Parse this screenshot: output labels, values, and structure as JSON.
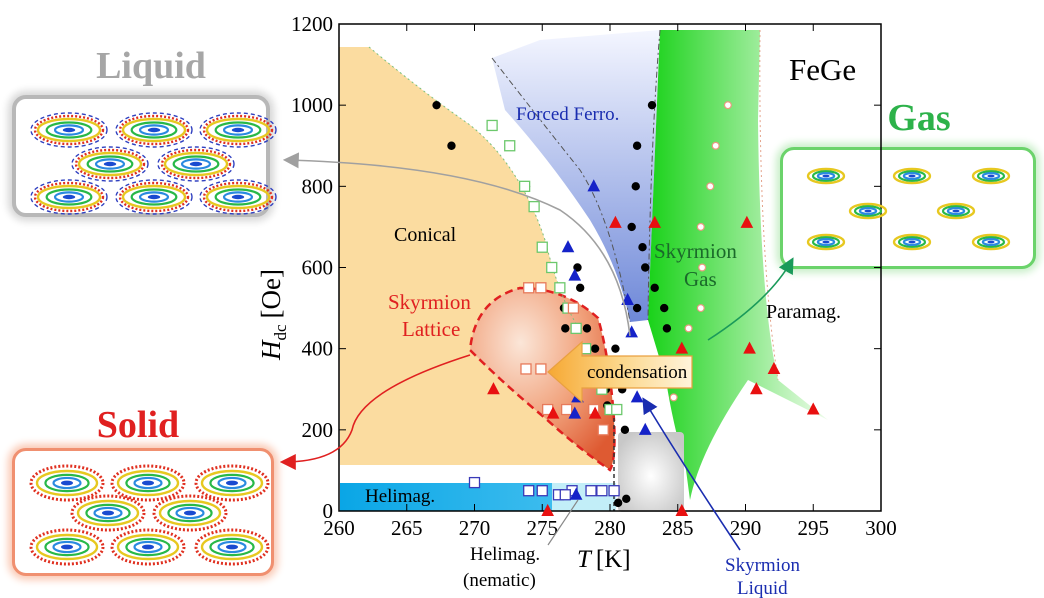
{
  "chart_data": {
    "type": "scatter",
    "title": "FeGe",
    "xlabel_symbol": "T",
    "xlabel_unit": "[K]",
    "ylabel_symbol": "H",
    "ylabel_sub": "dc",
    "ylabel_unit": "[Oe]",
    "xlim": [
      260,
      300
    ],
    "ylim": [
      0,
      1200
    ],
    "xticks": [
      260,
      265,
      270,
      275,
      280,
      285,
      290,
      295,
      300
    ],
    "yticks": [
      0,
      200,
      400,
      600,
      800,
      1000,
      1200
    ],
    "grid": false,
    "series": [
      {
        "marker": "black-circle",
        "points": [
          [
            267.2,
            1000
          ],
          [
            268.3,
            900
          ],
          [
            273.8,
            800
          ],
          [
            275,
            550
          ],
          [
            276.6,
            500
          ],
          [
            276.7,
            450
          ],
          [
            277.6,
            600
          ],
          [
            277.8,
            550
          ],
          [
            278.3,
            450
          ],
          [
            278.9,
            400
          ],
          [
            279.4,
            350
          ],
          [
            279.7,
            300
          ],
          [
            279.8,
            260
          ],
          [
            280.4,
            400
          ],
          [
            280.7,
            340
          ],
          [
            280.9,
            300
          ],
          [
            281.1,
            200
          ],
          [
            281.6,
            700
          ],
          [
            281.9,
            800
          ],
          [
            282,
            900
          ],
          [
            282,
            500
          ],
          [
            282.4,
            650
          ],
          [
            282.6,
            600
          ],
          [
            283.1,
            1000
          ],
          [
            283.3,
            550
          ],
          [
            284,
            500
          ],
          [
            284.2,
            450
          ],
          [
            279.5,
            200
          ],
          [
            280.2,
            50
          ],
          [
            280.6,
            20
          ],
          [
            281.2,
            30
          ]
        ]
      },
      {
        "marker": "green-open-square",
        "points": [
          [
            271.3,
            950
          ],
          [
            272.6,
            900
          ],
          [
            273.7,
            800
          ],
          [
            274.4,
            750
          ],
          [
            275,
            650
          ],
          [
            275.7,
            600
          ],
          [
            276.3,
            550
          ],
          [
            276.9,
            500
          ],
          [
            277.5,
            450
          ],
          [
            278.2,
            400
          ],
          [
            278.8,
            350
          ],
          [
            279.4,
            300
          ],
          [
            280,
            250
          ],
          [
            280.5,
            250
          ]
        ]
      },
      {
        "marker": "salmon-open-square",
        "points": [
          [
            274,
            550
          ],
          [
            274.9,
            550
          ],
          [
            277.3,
            500
          ],
          [
            273.8,
            350
          ],
          [
            274.9,
            350
          ],
          [
            276.8,
            250
          ],
          [
            278.8,
            250
          ],
          [
            279.5,
            200
          ],
          [
            275.4,
            250
          ]
        ]
      },
      {
        "marker": "blue-open-square",
        "points": [
          [
            270,
            70
          ],
          [
            274,
            50
          ],
          [
            275,
            50
          ],
          [
            277.2,
            50
          ],
          [
            278.6,
            50
          ],
          [
            279.4,
            50
          ],
          [
            280.3,
            50
          ],
          [
            276.2,
            40
          ],
          [
            276.7,
            40
          ]
        ]
      },
      {
        "marker": "red-triangle",
        "points": [
          [
            280.4,
            710
          ],
          [
            283.3,
            710
          ],
          [
            290.1,
            710
          ],
          [
            290.3,
            400
          ],
          [
            285.3,
            400
          ],
          [
            292.1,
            350
          ],
          [
            295,
            250
          ],
          [
            290.8,
            300
          ],
          [
            271.4,
            300
          ],
          [
            275.8,
            240
          ],
          [
            278.9,
            240
          ],
          [
            275.4,
            0
          ],
          [
            285.3,
            0
          ]
        ]
      },
      {
        "marker": "blue-triangle",
        "points": [
          [
            278.8,
            800
          ],
          [
            276.9,
            650
          ],
          [
            277.4,
            580
          ],
          [
            281.3,
            520
          ],
          [
            281.6,
            440
          ],
          [
            277.6,
            280
          ],
          [
            277.4,
            240
          ],
          [
            282.6,
            200
          ],
          [
            277.5,
            40
          ],
          [
            282,
            280
          ]
        ]
      },
      {
        "marker": "orange-open-circle",
        "points": [
          [
            288.7,
            1000
          ],
          [
            287.8,
            900
          ],
          [
            287.4,
            800
          ],
          [
            286.7,
            700
          ],
          [
            286.8,
            600
          ],
          [
            286.7,
            500
          ],
          [
            285.8,
            450
          ],
          [
            285.3,
            350
          ],
          [
            284.7,
            280
          ]
        ]
      }
    ],
    "regions": [
      "Forced Ferro.",
      "Conical",
      "Skyrmion Lattice",
      "Skyrmion Gas",
      "Paramag.",
      "Helimag."
    ],
    "annotations": {
      "condensation": "condensation",
      "nematic_line1": "Helimag.",
      "nematic_line2": "(nematic)",
      "sk_liquid_line1": "Skyrmion",
      "sk_liquid_line2": "Liquid"
    },
    "colors": {
      "conical": "#fbdca0",
      "forced_ferro": "#6e88d8",
      "sk_gas": "#22d622",
      "sk_lattice": "#e8663a",
      "helimag": "#16a9e6",
      "nematic": "#bfeef9",
      "solid": "#e02020",
      "liquid": "#a8a8a8",
      "gas": "#22aa44"
    },
    "phase_boxes": {
      "liquid": "Liquid",
      "gas": "Gas",
      "solid": "Solid"
    }
  }
}
